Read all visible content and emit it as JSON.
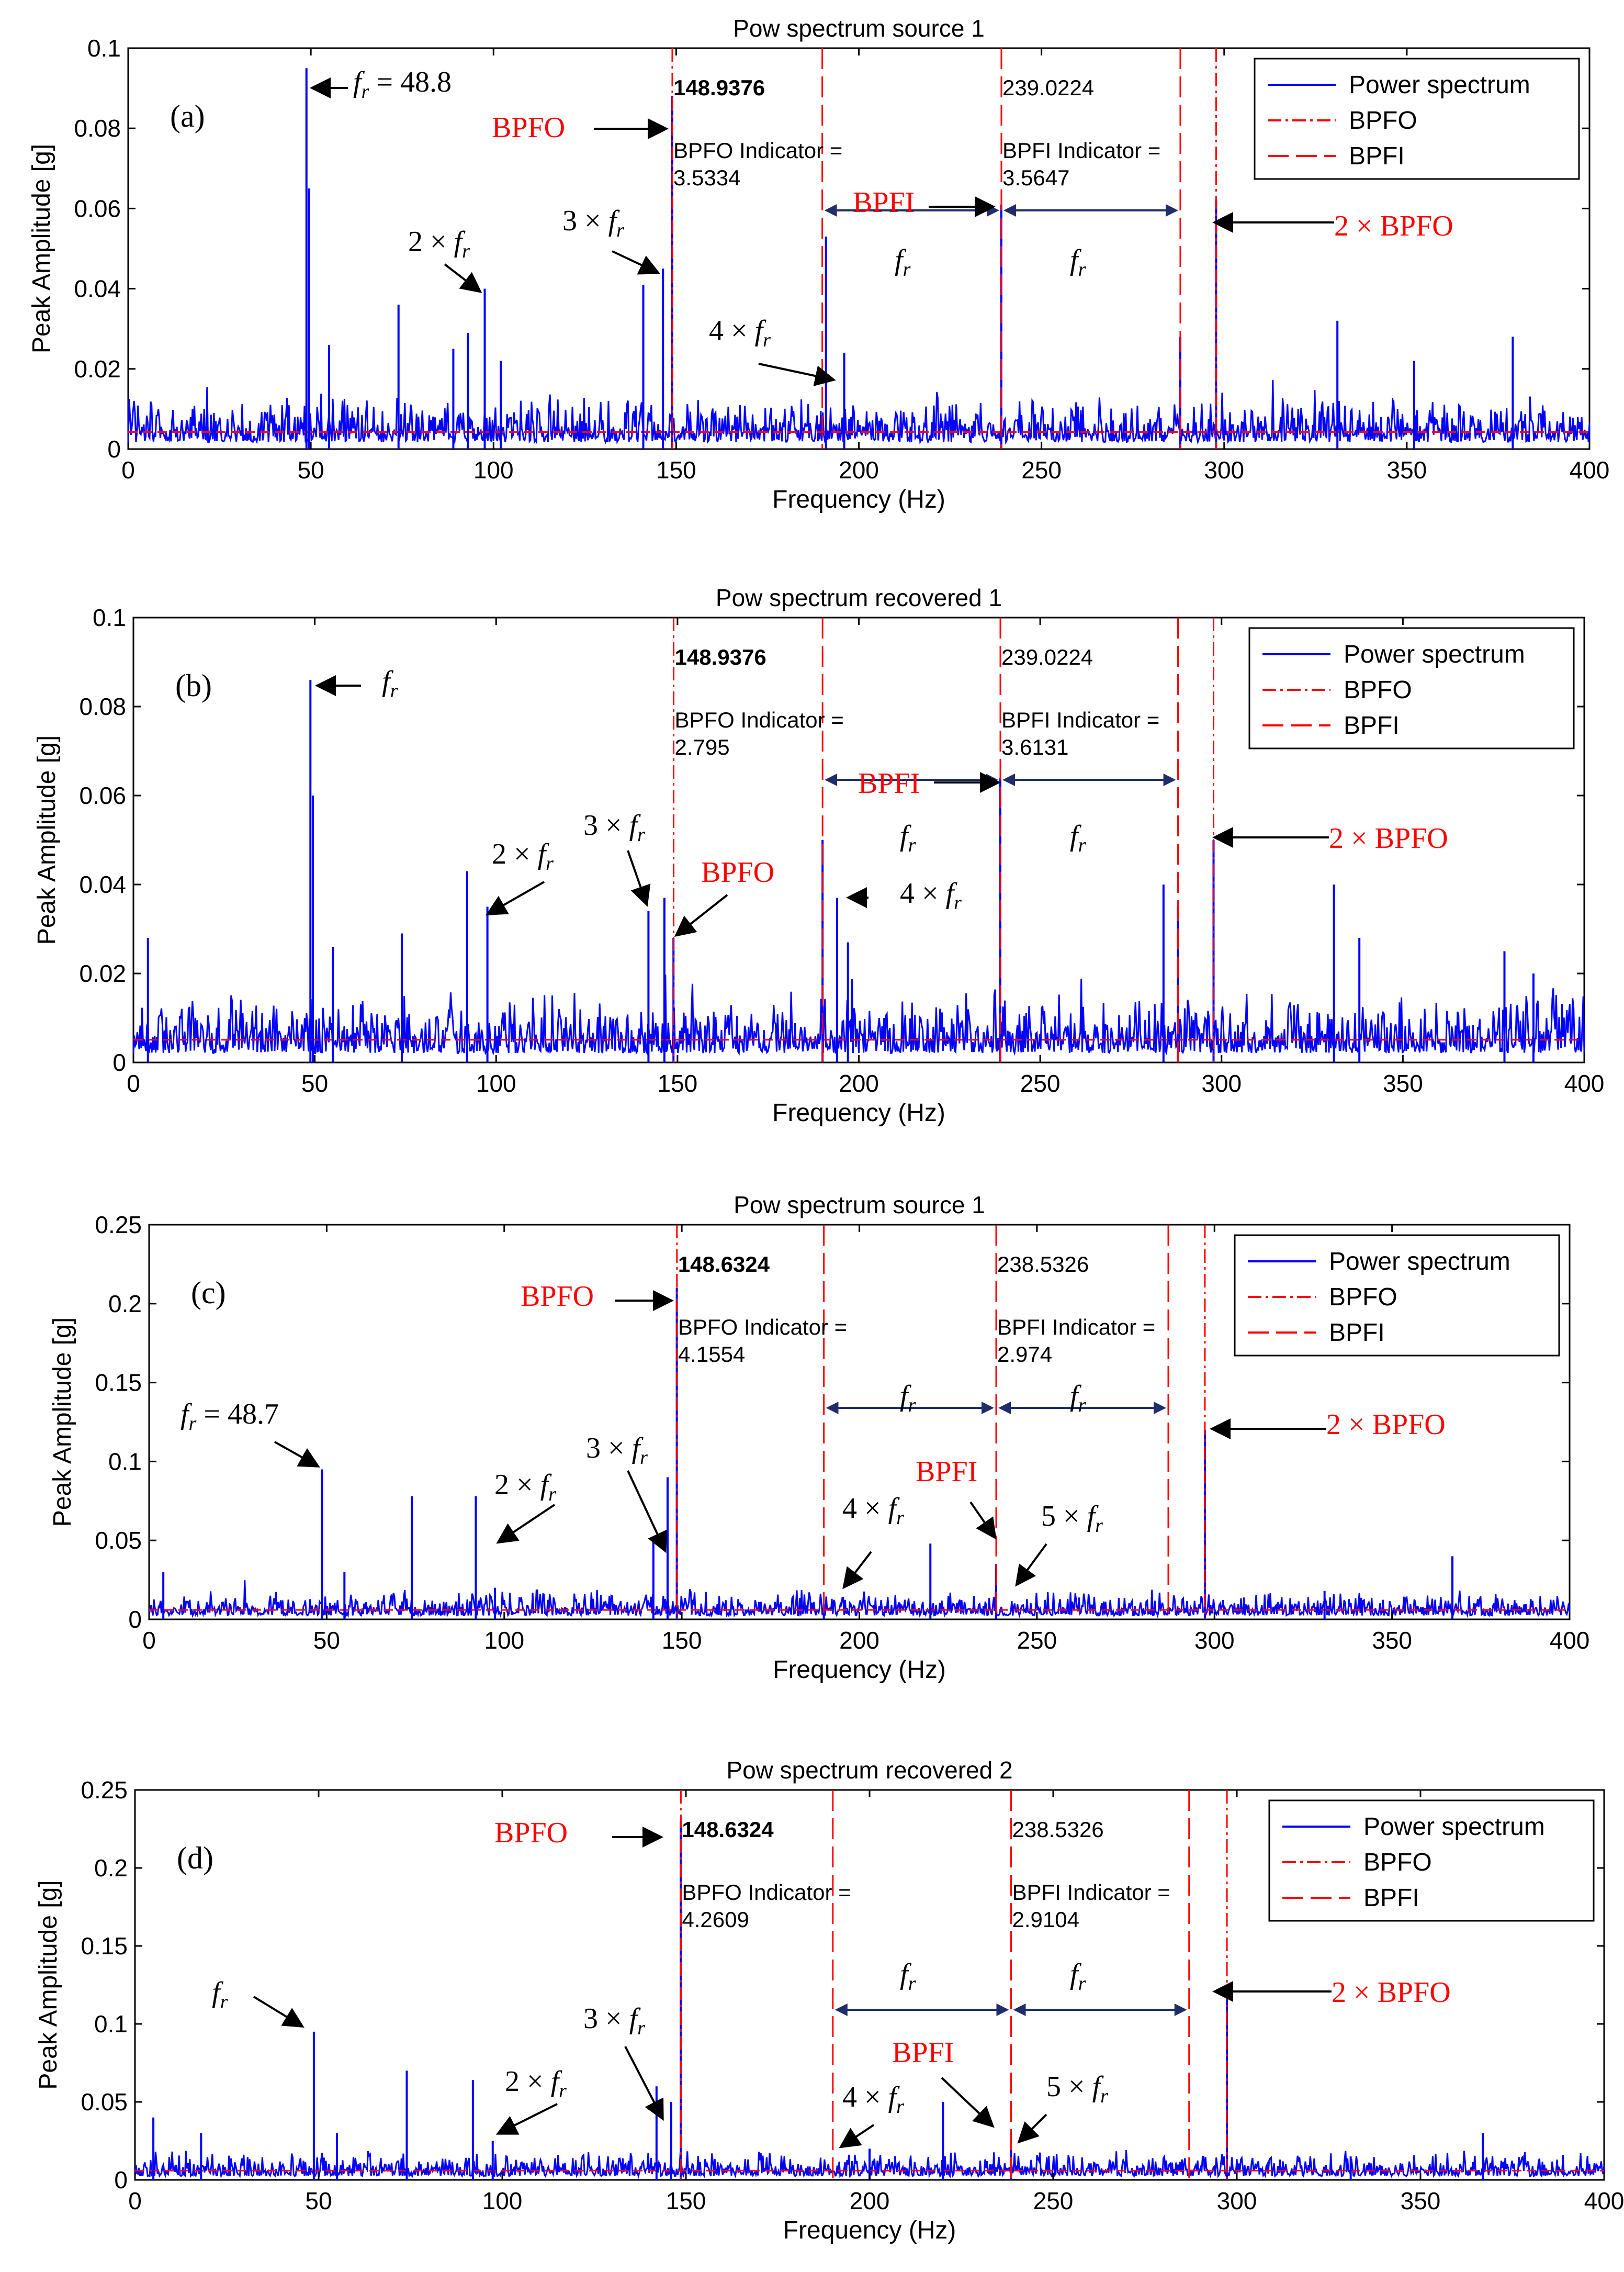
{
  "chart_data": [
    {
      "id": "a",
      "type": "line",
      "panel_label": "(a)",
      "title": "Pow spectrum source 1",
      "xlabel": "Frequency (Hz)",
      "ylabel": "Peak Amplitude [g]",
      "xlim": [
        0,
        400
      ],
      "ylim": [
        0,
        0.1
      ],
      "xticks": [
        0,
        50,
        100,
        150,
        200,
        250,
        300,
        350,
        400
      ],
      "yticks": [
        0,
        0.02,
        0.04,
        0.06,
        0.08,
        0.1
      ],
      "ytick_labels": [
        "0",
        "0.02",
        "0.04",
        "0.06",
        "0.08",
        "0.1"
      ],
      "noise_level": 0.005,
      "peaks": [
        [
          48.8,
          0.095
        ],
        [
          49.5,
          0.065
        ],
        [
          55,
          0.026
        ],
        [
          74,
          0.036
        ],
        [
          89,
          0.025
        ],
        [
          93,
          0.029
        ],
        [
          97.6,
          0.04
        ],
        [
          102,
          0.022
        ],
        [
          141,
          0.041
        ],
        [
          146.4,
          0.045
        ],
        [
          148.9,
          0.088
        ],
        [
          191,
          0.053
        ],
        [
          196,
          0.024
        ],
        [
          239,
          0.061
        ],
        [
          288,
          0.028
        ],
        [
          297.8,
          0.062
        ],
        [
          331,
          0.032
        ],
        [
          352,
          0.022
        ],
        [
          379,
          0.028
        ]
      ],
      "bpfo_lines": [
        148.9376,
        297.8
      ],
      "bpfi_lines": [
        190,
        239.0224,
        288
      ],
      "legend": [
        "Power spectrum",
        "BPFO",
        "BPFI"
      ],
      "texts": {
        "bpfo_freq": "148.9376",
        "bpfo_ind_label": "BPFO Indicator =",
        "bpfo_ind_value": "3.5334",
        "bpfi_freq": "239.0224",
        "bpfi_ind_label": "BPFI Indicator =",
        "bpfi_ind_value": "3.5647"
      },
      "annotations": [
        {
          "text": "f_r = 48.8",
          "color": "black"
        },
        {
          "text": "2 × f_r",
          "color": "black"
        },
        {
          "text": "3 × f_r",
          "color": "black"
        },
        {
          "text": "BPFO",
          "color": "red"
        },
        {
          "text": "4 × f_r",
          "color": "black"
        },
        {
          "text": "BPFI",
          "color": "red"
        },
        {
          "text": "f_r",
          "color": "black"
        },
        {
          "text": "f_r",
          "color": "black"
        },
        {
          "text": "2 × BPFO",
          "color": "red"
        }
      ]
    },
    {
      "id": "b",
      "type": "line",
      "panel_label": "(b)",
      "title": "Pow spectrum recovered 1",
      "xlabel": "Frequency (Hz)",
      "ylabel": "Peak Amplitude [g]",
      "xlim": [
        0,
        400
      ],
      "ylim": [
        0,
        0.1
      ],
      "xticks": [
        0,
        50,
        100,
        150,
        200,
        250,
        300,
        350,
        400
      ],
      "yticks": [
        0,
        0.02,
        0.04,
        0.06,
        0.08,
        0.1
      ],
      "ytick_labels": [
        "0",
        "0.02",
        "0.04",
        "0.06",
        "0.08",
        "0.1"
      ],
      "noise_level": 0.006,
      "peaks": [
        [
          4,
          0.028
        ],
        [
          48.8,
          0.086
        ],
        [
          49.5,
          0.06
        ],
        [
          55,
          0.026
        ],
        [
          74,
          0.029
        ],
        [
          92,
          0.043
        ],
        [
          97.6,
          0.035
        ],
        [
          142,
          0.034
        ],
        [
          146.4,
          0.037
        ],
        [
          148.9,
          0.028
        ],
        [
          190,
          0.05
        ],
        [
          194,
          0.037
        ],
        [
          197,
          0.027
        ],
        [
          239,
          0.064
        ],
        [
          284,
          0.04
        ],
        [
          288,
          0.035
        ],
        [
          297.8,
          0.05
        ],
        [
          331,
          0.04
        ],
        [
          338,
          0.028
        ],
        [
          378,
          0.025
        ],
        [
          386,
          0.02
        ]
      ],
      "bpfo_lines": [
        148.9376,
        297.8
      ],
      "bpfi_lines": [
        190,
        239.0224,
        288
      ],
      "legend": [
        "Power spectrum",
        "BPFO",
        "BPFI"
      ],
      "texts": {
        "bpfo_freq": "148.9376",
        "bpfo_ind_label": "BPFO Indicator =",
        "bpfo_ind_value": "2.795",
        "bpfi_freq": "239.0224",
        "bpfi_ind_label": "BPFI Indicator =",
        "bpfi_ind_value": "3.6131"
      },
      "annotations": [
        {
          "text": "f_r",
          "color": "black"
        },
        {
          "text": "2 × f_r",
          "color": "black"
        },
        {
          "text": "3 × f_r",
          "color": "black"
        },
        {
          "text": "BPFO",
          "color": "red"
        },
        {
          "text": "4 × f_r",
          "color": "black"
        },
        {
          "text": "BPFI",
          "color": "red"
        },
        {
          "text": "f_r",
          "color": "black"
        },
        {
          "text": "f_r",
          "color": "black"
        },
        {
          "text": "2 × BPFO",
          "color": "red"
        }
      ]
    },
    {
      "id": "c",
      "type": "line",
      "panel_label": "(c)",
      "title": "Pow spectrum source 1",
      "xlabel": "Frequency (Hz)",
      "ylabel": "Peak Amplitude [g]",
      "xlim": [
        0,
        400
      ],
      "ylim": [
        0,
        0.25
      ],
      "xticks": [
        0,
        50,
        100,
        150,
        200,
        250,
        300,
        350,
        400
      ],
      "yticks": [
        0,
        0.05,
        0.1,
        0.15,
        0.2,
        0.25
      ],
      "ytick_labels": [
        "0",
        "0.05",
        "0.1",
        "0.15",
        "0.2",
        "0.25"
      ],
      "noise_level": 0.007,
      "peaks": [
        [
          4,
          0.03
        ],
        [
          48.7,
          0.095
        ],
        [
          55,
          0.03
        ],
        [
          74,
          0.078
        ],
        [
          92,
          0.078
        ],
        [
          97.4,
          0.02
        ],
        [
          142,
          0.05
        ],
        [
          146,
          0.09
        ],
        [
          148.6,
          0.21
        ],
        [
          190,
          0.01
        ],
        [
          220,
          0.048
        ],
        [
          238.5,
          0.035
        ],
        [
          297.3,
          0.12
        ],
        [
          331,
          0.018
        ],
        [
          367,
          0.04
        ]
      ],
      "bpfo_lines": [
        148.6324,
        297.3
      ],
      "bpfi_lines": [
        190,
        238.5326,
        287
      ],
      "legend": [
        "Power spectrum",
        "BPFO",
        "BPFI"
      ],
      "texts": {
        "bpfo_freq": "148.6324",
        "bpfo_ind_label": "BPFO Indicator =",
        "bpfo_ind_value": "4.1554",
        "bpfi_freq": "238.5326",
        "bpfi_ind_label": "BPFI Indicator =",
        "bpfi_ind_value": "2.974"
      },
      "annotations": [
        {
          "text": "BPFO",
          "color": "red"
        },
        {
          "text": "f_r = 48.7",
          "color": "black"
        },
        {
          "text": "2 × f_r",
          "color": "black"
        },
        {
          "text": "3 × f_r",
          "color": "black"
        },
        {
          "text": "4 × f_r",
          "color": "black"
        },
        {
          "text": "BPFI",
          "color": "red"
        },
        {
          "text": "5 × f_r",
          "color": "black"
        },
        {
          "text": "f_r",
          "color": "black"
        },
        {
          "text": "f_r",
          "color": "black"
        },
        {
          "text": "2 × BPFO",
          "color": "red"
        }
      ]
    },
    {
      "id": "d",
      "type": "line",
      "panel_label": "(d)",
      "title": "Pow spectrum recovered 2",
      "xlabel": "Frequency (Hz)",
      "ylabel": "Peak Amplitude [g]",
      "xlim": [
        0,
        400
      ],
      "ylim": [
        0,
        0.25
      ],
      "xticks": [
        0,
        50,
        100,
        150,
        200,
        250,
        300,
        350,
        400
      ],
      "yticks": [
        0,
        0.05,
        0.1,
        0.15,
        0.2,
        0.25
      ],
      "ytick_labels": [
        "0",
        "0.05",
        "0.1",
        "0.15",
        "0.2",
        "0.25"
      ],
      "noise_level": 0.007,
      "peaks": [
        [
          5,
          0.04
        ],
        [
          18,
          0.03
        ],
        [
          48.7,
          0.095
        ],
        [
          55,
          0.03
        ],
        [
          74,
          0.07
        ],
        [
          92,
          0.064
        ],
        [
          97.4,
          0.025
        ],
        [
          142,
          0.06
        ],
        [
          146,
          0.05
        ],
        [
          148.6,
          0.23
        ],
        [
          200,
          0.02
        ],
        [
          220,
          0.05
        ],
        [
          238.5,
          0.02
        ],
        [
          297.3,
          0.12
        ],
        [
          331,
          0.015
        ],
        [
          367,
          0.03
        ]
      ],
      "bpfo_lines": [
        148.6324,
        297.3
      ],
      "bpfi_lines": [
        190,
        238.5326,
        287
      ],
      "legend": [
        "Power spectrum",
        "BPFO",
        "BPFI"
      ],
      "texts": {
        "bpfo_freq": "148.6324",
        "bpfo_ind_label": "BPFO Indicator =",
        "bpfo_ind_value": "4.2609",
        "bpfi_freq": "238.5326",
        "bpfi_ind_label": "BPFI Indicator =",
        "bpfi_ind_value": "2.9104"
      },
      "annotations": [
        {
          "text": "BPFO",
          "color": "red"
        },
        {
          "text": "f_r",
          "color": "black"
        },
        {
          "text": "2 × f_r",
          "color": "black"
        },
        {
          "text": "3 × f_r",
          "color": "black"
        },
        {
          "text": "4 × f_r",
          "color": "black"
        },
        {
          "text": "BPFI",
          "color": "red"
        },
        {
          "text": "5 × f_r",
          "color": "black"
        },
        {
          "text": "f_r",
          "color": "black"
        },
        {
          "text": "f_r",
          "color": "black"
        },
        {
          "text": "2 × BPFO",
          "color": "red"
        }
      ]
    }
  ]
}
